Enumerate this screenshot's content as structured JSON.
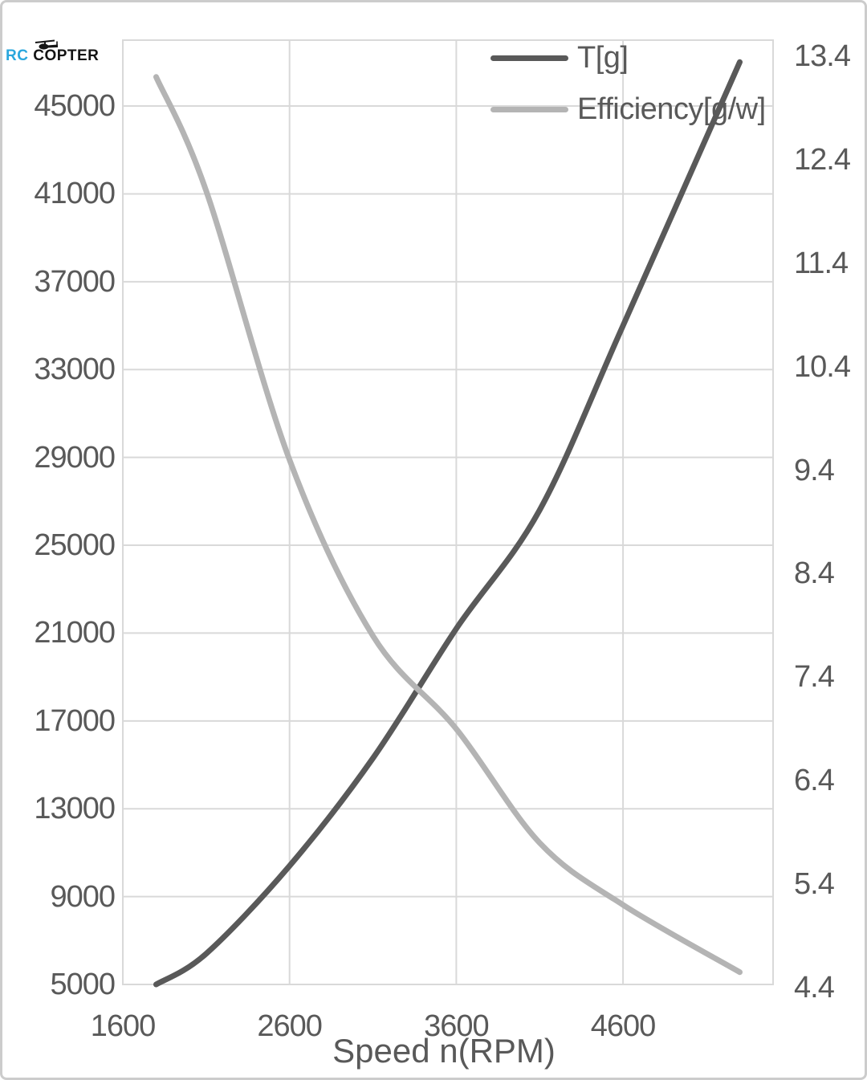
{
  "logo": {
    "rc": "RC",
    "copter": "COPTER"
  },
  "legend": {
    "items": [
      {
        "label": "T[g]",
        "color": "#595959"
      },
      {
        "label": "Efficiency[g/w]",
        "color": "#b4b4b4"
      }
    ]
  },
  "x_axis": {
    "title": "Speed n(RPM)",
    "min": 1600,
    "max": 5500,
    "tick_values": [
      1600,
      2600,
      3600,
      4600
    ],
    "tick_labels": [
      "1600",
      "2600",
      "3600",
      "4600"
    ]
  },
  "y_axis_left": {
    "min": 5000,
    "max": 48000,
    "tick_values": [
      5000,
      9000,
      13000,
      17000,
      21000,
      25000,
      29000,
      33000,
      37000,
      41000,
      45000
    ],
    "tick_labels": [
      "5000",
      "9000",
      "13000",
      "17000",
      "21000",
      "25000",
      "29000",
      "33000",
      "37000",
      "41000",
      "45000"
    ]
  },
  "y_axis_right": {
    "min": 4.4,
    "max_label": 13.4,
    "tick_values": [
      4.4,
      5.4,
      6.4,
      7.4,
      8.4,
      9.4,
      10.4,
      11.4,
      12.4,
      13.4
    ],
    "tick_labels": [
      "4.4",
      "5.4",
      "6.4",
      "7.4",
      "8.4",
      "9.4",
      "10.4",
      "11.4",
      "12.4",
      "13.4"
    ]
  },
  "chart_data": {
    "type": "line",
    "title": "",
    "xlabel": "Speed n(RPM)",
    "ylabel_left": "T[g]",
    "ylabel_right": "Efficiency[g/w]",
    "grid": true,
    "legend_position": "top-right",
    "x_range": [
      1600,
      5500
    ],
    "y_left_range": [
      5000,
      48000
    ],
    "y_right_range": [
      4.4,
      13.55
    ],
    "series": [
      {
        "name": "T[g]",
        "axis": "left",
        "color": "#595959",
        "points": [
          [
            1800,
            5000
          ],
          [
            2100,
            6400
          ],
          [
            2600,
            10400
          ],
          [
            3100,
            15300
          ],
          [
            3600,
            21200
          ],
          [
            4100,
            26600
          ],
          [
            4600,
            35000
          ],
          [
            5300,
            47000
          ]
        ]
      },
      {
        "name": "Efficiency[g/w]",
        "axis": "right",
        "color": "#b4b4b4",
        "points": [
          [
            1800,
            13.2
          ],
          [
            2100,
            12.1
          ],
          [
            2600,
            9.5
          ],
          [
            3100,
            7.8
          ],
          [
            3600,
            6.9
          ],
          [
            4100,
            5.8
          ],
          [
            4600,
            5.2
          ],
          [
            5300,
            4.55
          ]
        ]
      }
    ]
  },
  "colors": {
    "text": "#595959",
    "grid": "#d9d9d9",
    "background": "#ffffff",
    "logo_rc": "#2aa7dd",
    "logo_copter": "#141414"
  }
}
